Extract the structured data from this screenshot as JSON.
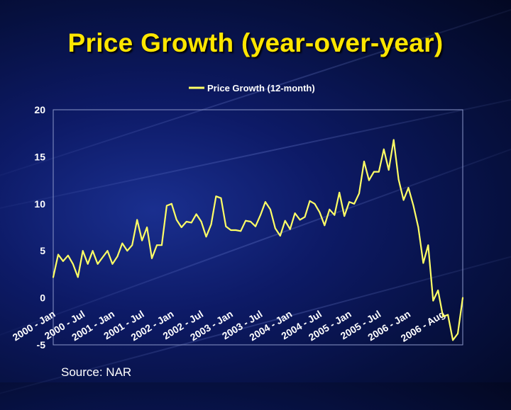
{
  "slide": {
    "title": "Price Growth (year-over-year)",
    "source": "Source: NAR"
  },
  "colors": {
    "title": "#ffe600",
    "line": "#ffff66",
    "text": "#ffffff",
    "background": "#0d1a66"
  },
  "chart_data": {
    "type": "line",
    "title": "",
    "xlabel": "",
    "ylabel": "",
    "ylim": [
      -5,
      20
    ],
    "y_ticks": [
      "-5",
      "0",
      "5",
      "10",
      "15",
      "20"
    ],
    "grid": false,
    "legend_position": "top-center",
    "x_tick_labels": [
      "2000 - Jan",
      "2000 - Jul",
      "2001 - Jan",
      "2001 - Jul",
      "2002 - Jan",
      "2002 - Jul",
      "2003 - Jan",
      "2003 - Jul",
      "2004 - Jan",
      "2004 - Jul",
      "2005 - Jan",
      "2005 - Jul",
      "2006 - Jan",
      "2006 - Aug"
    ],
    "x_tick_indices": [
      0,
      6,
      12,
      18,
      24,
      30,
      36,
      42,
      48,
      54,
      60,
      66,
      72,
      79
    ],
    "series": [
      {
        "name": "Price Growth (12-month)",
        "values": [
          2.2,
          4.6,
          3.9,
          4.5,
          3.6,
          2.2,
          5.0,
          3.6,
          5.0,
          3.6,
          4.3,
          5.0,
          3.6,
          4.4,
          5.8,
          5.0,
          5.6,
          8.3,
          6.1,
          7.5,
          4.2,
          5.6,
          5.6,
          9.8,
          10.0,
          8.3,
          7.5,
          8.1,
          8.0,
          8.9,
          8.1,
          6.5,
          7.8,
          10.8,
          10.6,
          7.6,
          7.2,
          7.2,
          7.1,
          8.2,
          8.1,
          7.6,
          8.8,
          10.2,
          9.4,
          7.4,
          6.6,
          8.2,
          7.3,
          9.0,
          8.3,
          8.6,
          10.3,
          10.0,
          9.1,
          7.7,
          9.4,
          8.8,
          11.2,
          8.7,
          10.2,
          10.0,
          11.1,
          14.5,
          12.5,
          13.4,
          13.4,
          15.8,
          13.6,
          16.8,
          12.6,
          10.4,
          11.7,
          9.8,
          7.5,
          3.7,
          5.6,
          -0.3,
          0.8,
          -2.0,
          -1.8,
          -4.5,
          -3.8,
          0.0
        ]
      }
    ]
  }
}
